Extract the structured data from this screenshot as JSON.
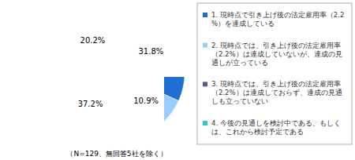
{
  "chart_data": {
    "type": "pie",
    "categories": [
      "1. 現時点で引き上げ後の法定雇用率（2.2%）を達成している",
      "2. 現時点では、引き上げ後の法定雇用率（2.2%）は達成していないが、達成の見通しが立っている",
      "3. 現時点では、引き上げ後の法定雇用率（2.2%）は達成しておらず、達成の見通しも立っていない",
      "4. 今後の見通しを検討中である、もしくは、これから検討予定である"
    ],
    "values": [
      31.8,
      10.9,
      37.2,
      20.2
    ],
    "value_labels": [
      "31.8%",
      "10.9%",
      "37.2%",
      "20.2%"
    ],
    "colors": [
      "#1f6fd1",
      "#99ccff",
      "#5b5b99",
      "#33cccc"
    ],
    "data_labels": true,
    "legend": "right",
    "annotations": [
      "（N=129、無回答5社を除く）"
    ]
  }
}
